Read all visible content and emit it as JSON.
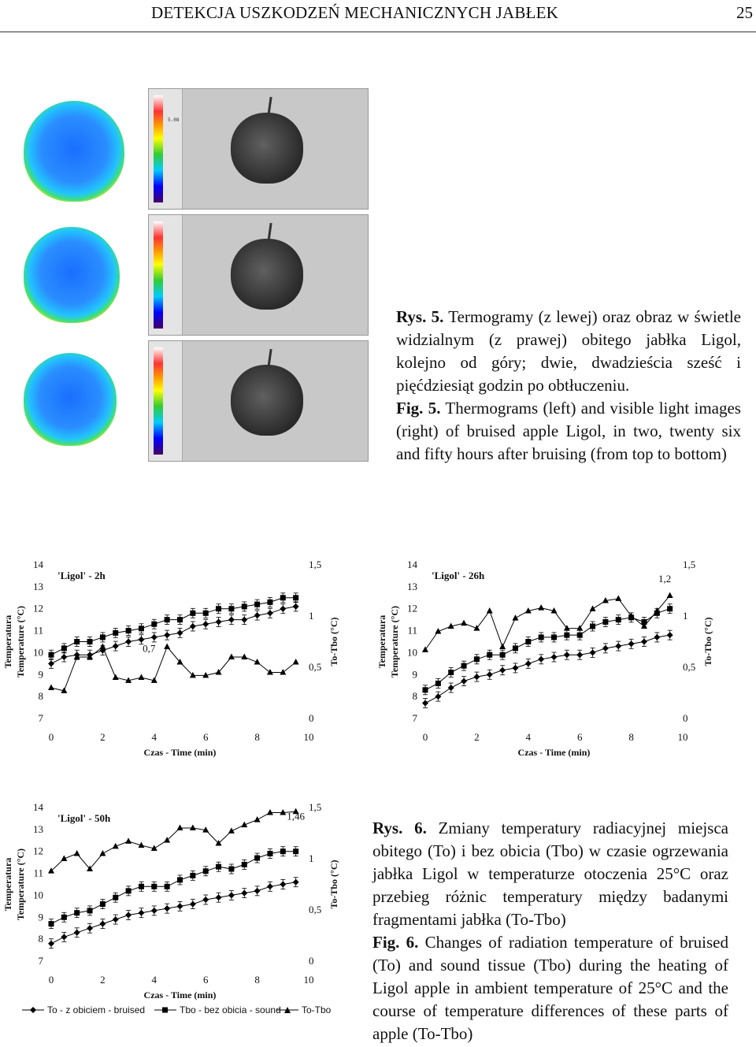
{
  "header": {
    "title": "DETEKCJA USZKODZEŃ MECHANICZNYCH JABŁEK",
    "page_number": "25"
  },
  "thermograms": {
    "scale_ticks": [
      "",
      "5.08",
      "",
      "",
      ""
    ],
    "panels": [
      {},
      {},
      {}
    ]
  },
  "caption5": {
    "pl_label": "Rys. 5.",
    "pl_text": " Termogramy (z lewej) oraz obraz w świetle widzialnym (z prawej) obitego jabłka Ligol, kolejno od góry; dwie, dwadzieścia sześć i pięćdziesiąt godzin po obtłuczeniu.",
    "en_label": "Fig. 5.",
    "en_text": " Thermograms (left) and visible light images (right) of bruised apple Ligol, in two, twenty six and fifty hours after bruising (from top to bottom)"
  },
  "caption6": {
    "pl_label": "Rys. 6.",
    "pl_text": " Zmiany temperatury radiacyjnej miejsca obitego (To) i bez obicia (Tbo) w czasie ogrzewania jabłka Ligol w temperaturze otoczenia 25°C oraz przebieg różnic temperatury między badanymi fragmentami jabłka (To-Tbo)",
    "en_label": "Fig. 6.",
    "en_text": " Changes of radiation temperature of bruised (To) and sound tissue (Tbo) during the heating of Ligol apple in ambient temperature of 25°C and the course of temperature differences of these parts of apple (To-Tbo)"
  },
  "legend": {
    "to": "To - z obiciem - bruised",
    "tbo": "Tbo - bez obicia - sound",
    "diff": "To-Tbo"
  },
  "chart_data": [
    {
      "type": "line",
      "title": "'Ligol' - 2h",
      "xlabel": "Czas - Time (min)",
      "ylabel_left": [
        "Temperatura",
        "Temperature (°C)"
      ],
      "ylabel_right": "To-Tbo (°C)",
      "xlim": [
        0,
        10
      ],
      "ylim_left": [
        7,
        14
      ],
      "ylim_right": [
        0,
        1.5
      ],
      "x_ticks": [
        "0",
        "2",
        "4",
        "6",
        "8",
        "10"
      ],
      "y_ticks_left": [
        "7",
        "8",
        "9",
        "10",
        "11",
        "12",
        "13",
        "14"
      ],
      "y_ticks_right": [
        "0",
        "0,5",
        "1",
        "1,5"
      ],
      "annotation": {
        "text": "0,7",
        "x": 3.8,
        "y": 0.65
      },
      "series": [
        {
          "key": "to",
          "marker": "diamond",
          "axis": "left",
          "x": [
            0,
            0.5,
            1,
            1.5,
            2,
            2.5,
            3,
            3.5,
            4,
            4.5,
            5,
            5.5,
            6,
            6.5,
            7,
            7.5,
            8,
            8.5,
            9,
            9.5
          ],
          "y": [
            9.5,
            9.8,
            9.9,
            9.9,
            10.1,
            10.3,
            10.5,
            10.6,
            10.7,
            10.8,
            10.9,
            11.2,
            11.3,
            11.4,
            11.5,
            11.5,
            11.7,
            11.8,
            12.0,
            12.1
          ]
        },
        {
          "key": "tbo",
          "marker": "square",
          "axis": "left",
          "x": [
            0,
            0.5,
            1,
            1.5,
            2,
            2.5,
            3,
            3.5,
            4,
            4.5,
            5,
            5.5,
            6,
            6.5,
            7,
            7.5,
            8,
            8.5,
            9,
            9.5
          ],
          "y": [
            9.9,
            10.2,
            10.5,
            10.5,
            10.7,
            10.9,
            11.0,
            11.1,
            11.3,
            11.5,
            11.5,
            11.8,
            11.8,
            12.0,
            12.0,
            12.1,
            12.2,
            12.3,
            12.5,
            12.5
          ]
        },
        {
          "key": "diff",
          "marker": "triangle",
          "axis": "right",
          "x": [
            0,
            0.5,
            1,
            1.5,
            2,
            2.5,
            3,
            3.5,
            4,
            4.5,
            5,
            5.5,
            6,
            6.5,
            7,
            7.5,
            8,
            8.5,
            9,
            9.5
          ],
          "y": [
            0.3,
            0.27,
            0.6,
            0.6,
            0.7,
            0.4,
            0.37,
            0.4,
            0.37,
            0.7,
            0.55,
            0.42,
            0.42,
            0.45,
            0.6,
            0.6,
            0.55,
            0.45,
            0.45,
            0.55
          ]
        }
      ]
    },
    {
      "type": "line",
      "title": "'Ligol' - 26h",
      "xlabel": "Czas - Time (min)",
      "ylabel_left": [
        "Temperatura",
        "Temperature (°C)"
      ],
      "ylabel_right": "To-Tbo (°C)",
      "xlim": [
        0,
        10
      ],
      "ylim_left": [
        7,
        14
      ],
      "ylim_right": [
        0,
        1.5
      ],
      "x_ticks": [
        "0",
        "2",
        "4",
        "6",
        "8",
        "10"
      ],
      "y_ticks_left": [
        "7",
        "8",
        "9",
        "10",
        "11",
        "12",
        "13",
        "14"
      ],
      "y_ticks_right": [
        "0",
        "0,5",
        "1",
        "1,5"
      ],
      "annotation": {
        "text": "1,2",
        "x": 9.3,
        "y": 1.33
      },
      "series": [
        {
          "key": "to",
          "marker": "diamond",
          "axis": "left",
          "x": [
            0,
            0.5,
            1,
            1.5,
            2,
            2.5,
            3,
            3.5,
            4,
            4.5,
            5,
            5.5,
            6,
            6.5,
            7,
            7.5,
            8,
            8.5,
            9,
            9.5
          ],
          "y": [
            7.7,
            8.0,
            8.4,
            8.7,
            8.9,
            9.0,
            9.2,
            9.3,
            9.5,
            9.7,
            9.8,
            9.9,
            9.9,
            10.0,
            10.2,
            10.3,
            10.4,
            10.5,
            10.7,
            10.8
          ]
        },
        {
          "key": "tbo",
          "marker": "square",
          "axis": "left",
          "x": [
            0,
            0.5,
            1,
            1.5,
            2,
            2.5,
            3,
            3.5,
            4,
            4.5,
            5,
            5.5,
            6,
            6.5,
            7,
            7.5,
            8,
            8.5,
            9,
            9.5
          ],
          "y": [
            8.3,
            8.6,
            9.1,
            9.4,
            9.7,
            9.9,
            9.9,
            10.2,
            10.5,
            10.7,
            10.7,
            10.8,
            10.8,
            11.2,
            11.4,
            11.5,
            11.6,
            11.4,
            11.8,
            12.0
          ]
        },
        {
          "key": "diff",
          "marker": "triangle",
          "axis": "right",
          "x": [
            0,
            0.5,
            1,
            1.5,
            2,
            2.5,
            3,
            3.5,
            4,
            4.5,
            5,
            5.5,
            6,
            6.5,
            7,
            7.5,
            8,
            8.5,
            9,
            9.5
          ],
          "y": [
            0.67,
            0.85,
            0.9,
            0.93,
            0.88,
            1.05,
            0.7,
            0.98,
            1.05,
            1.08,
            1.05,
            0.88,
            0.88,
            1.07,
            1.15,
            1.17,
            1.0,
            0.9,
            1.05,
            1.2
          ]
        }
      ]
    },
    {
      "type": "line",
      "title": "'Ligol' - 50h",
      "xlabel": "Czas - Time (min)",
      "ylabel_left": [
        "Temperatura",
        "Temperature (°C)"
      ],
      "ylabel_right": "To-Tbo (°C)",
      "xlim": [
        0,
        10
      ],
      "ylim_left": [
        7,
        14
      ],
      "ylim_right": [
        0,
        1.5
      ],
      "x_ticks": [
        "0",
        "2",
        "4",
        "6",
        "8",
        "10"
      ],
      "y_ticks_left": [
        "7",
        "8",
        "9",
        "10",
        "11",
        "12",
        "13",
        "14"
      ],
      "y_ticks_right": [
        "0",
        "0,5",
        "1",
        "1,5"
      ],
      "annotation": {
        "text": "1,46",
        "x": 9.5,
        "y": 1.38
      },
      "series": [
        {
          "key": "to",
          "marker": "diamond",
          "axis": "left",
          "x": [
            0,
            0.5,
            1,
            1.5,
            2,
            2.5,
            3,
            3.5,
            4,
            4.5,
            5,
            5.5,
            6,
            6.5,
            7,
            7.5,
            8,
            8.5,
            9,
            9.5
          ],
          "y": [
            7.8,
            8.1,
            8.3,
            8.5,
            8.7,
            8.9,
            9.1,
            9.2,
            9.3,
            9.4,
            9.5,
            9.6,
            9.8,
            9.9,
            10.0,
            10.1,
            10.2,
            10.4,
            10.5,
            10.6
          ]
        },
        {
          "key": "tbo",
          "marker": "square",
          "axis": "left",
          "x": [
            0,
            0.5,
            1,
            1.5,
            2,
            2.5,
            3,
            3.5,
            4,
            4.5,
            5,
            5.5,
            6,
            6.5,
            7,
            7.5,
            8,
            8.5,
            9,
            9.5
          ],
          "y": [
            8.7,
            9.0,
            9.2,
            9.3,
            9.6,
            9.9,
            10.2,
            10.4,
            10.4,
            10.4,
            10.7,
            10.9,
            11.1,
            11.3,
            11.2,
            11.4,
            11.7,
            11.9,
            12.0,
            12.0
          ]
        },
        {
          "key": "diff",
          "marker": "triangle",
          "axis": "right",
          "x": [
            0,
            0.5,
            1,
            1.5,
            2,
            2.5,
            3,
            3.5,
            4,
            4.5,
            5,
            5.5,
            6,
            6.5,
            7,
            7.5,
            8,
            8.5,
            9,
            9.5
          ],
          "y": [
            0.88,
            1.0,
            1.05,
            0.9,
            1.05,
            1.12,
            1.17,
            1.13,
            1.1,
            1.18,
            1.3,
            1.3,
            1.28,
            1.15,
            1.27,
            1.33,
            1.38,
            1.45,
            1.45,
            1.46
          ]
        }
      ]
    }
  ]
}
